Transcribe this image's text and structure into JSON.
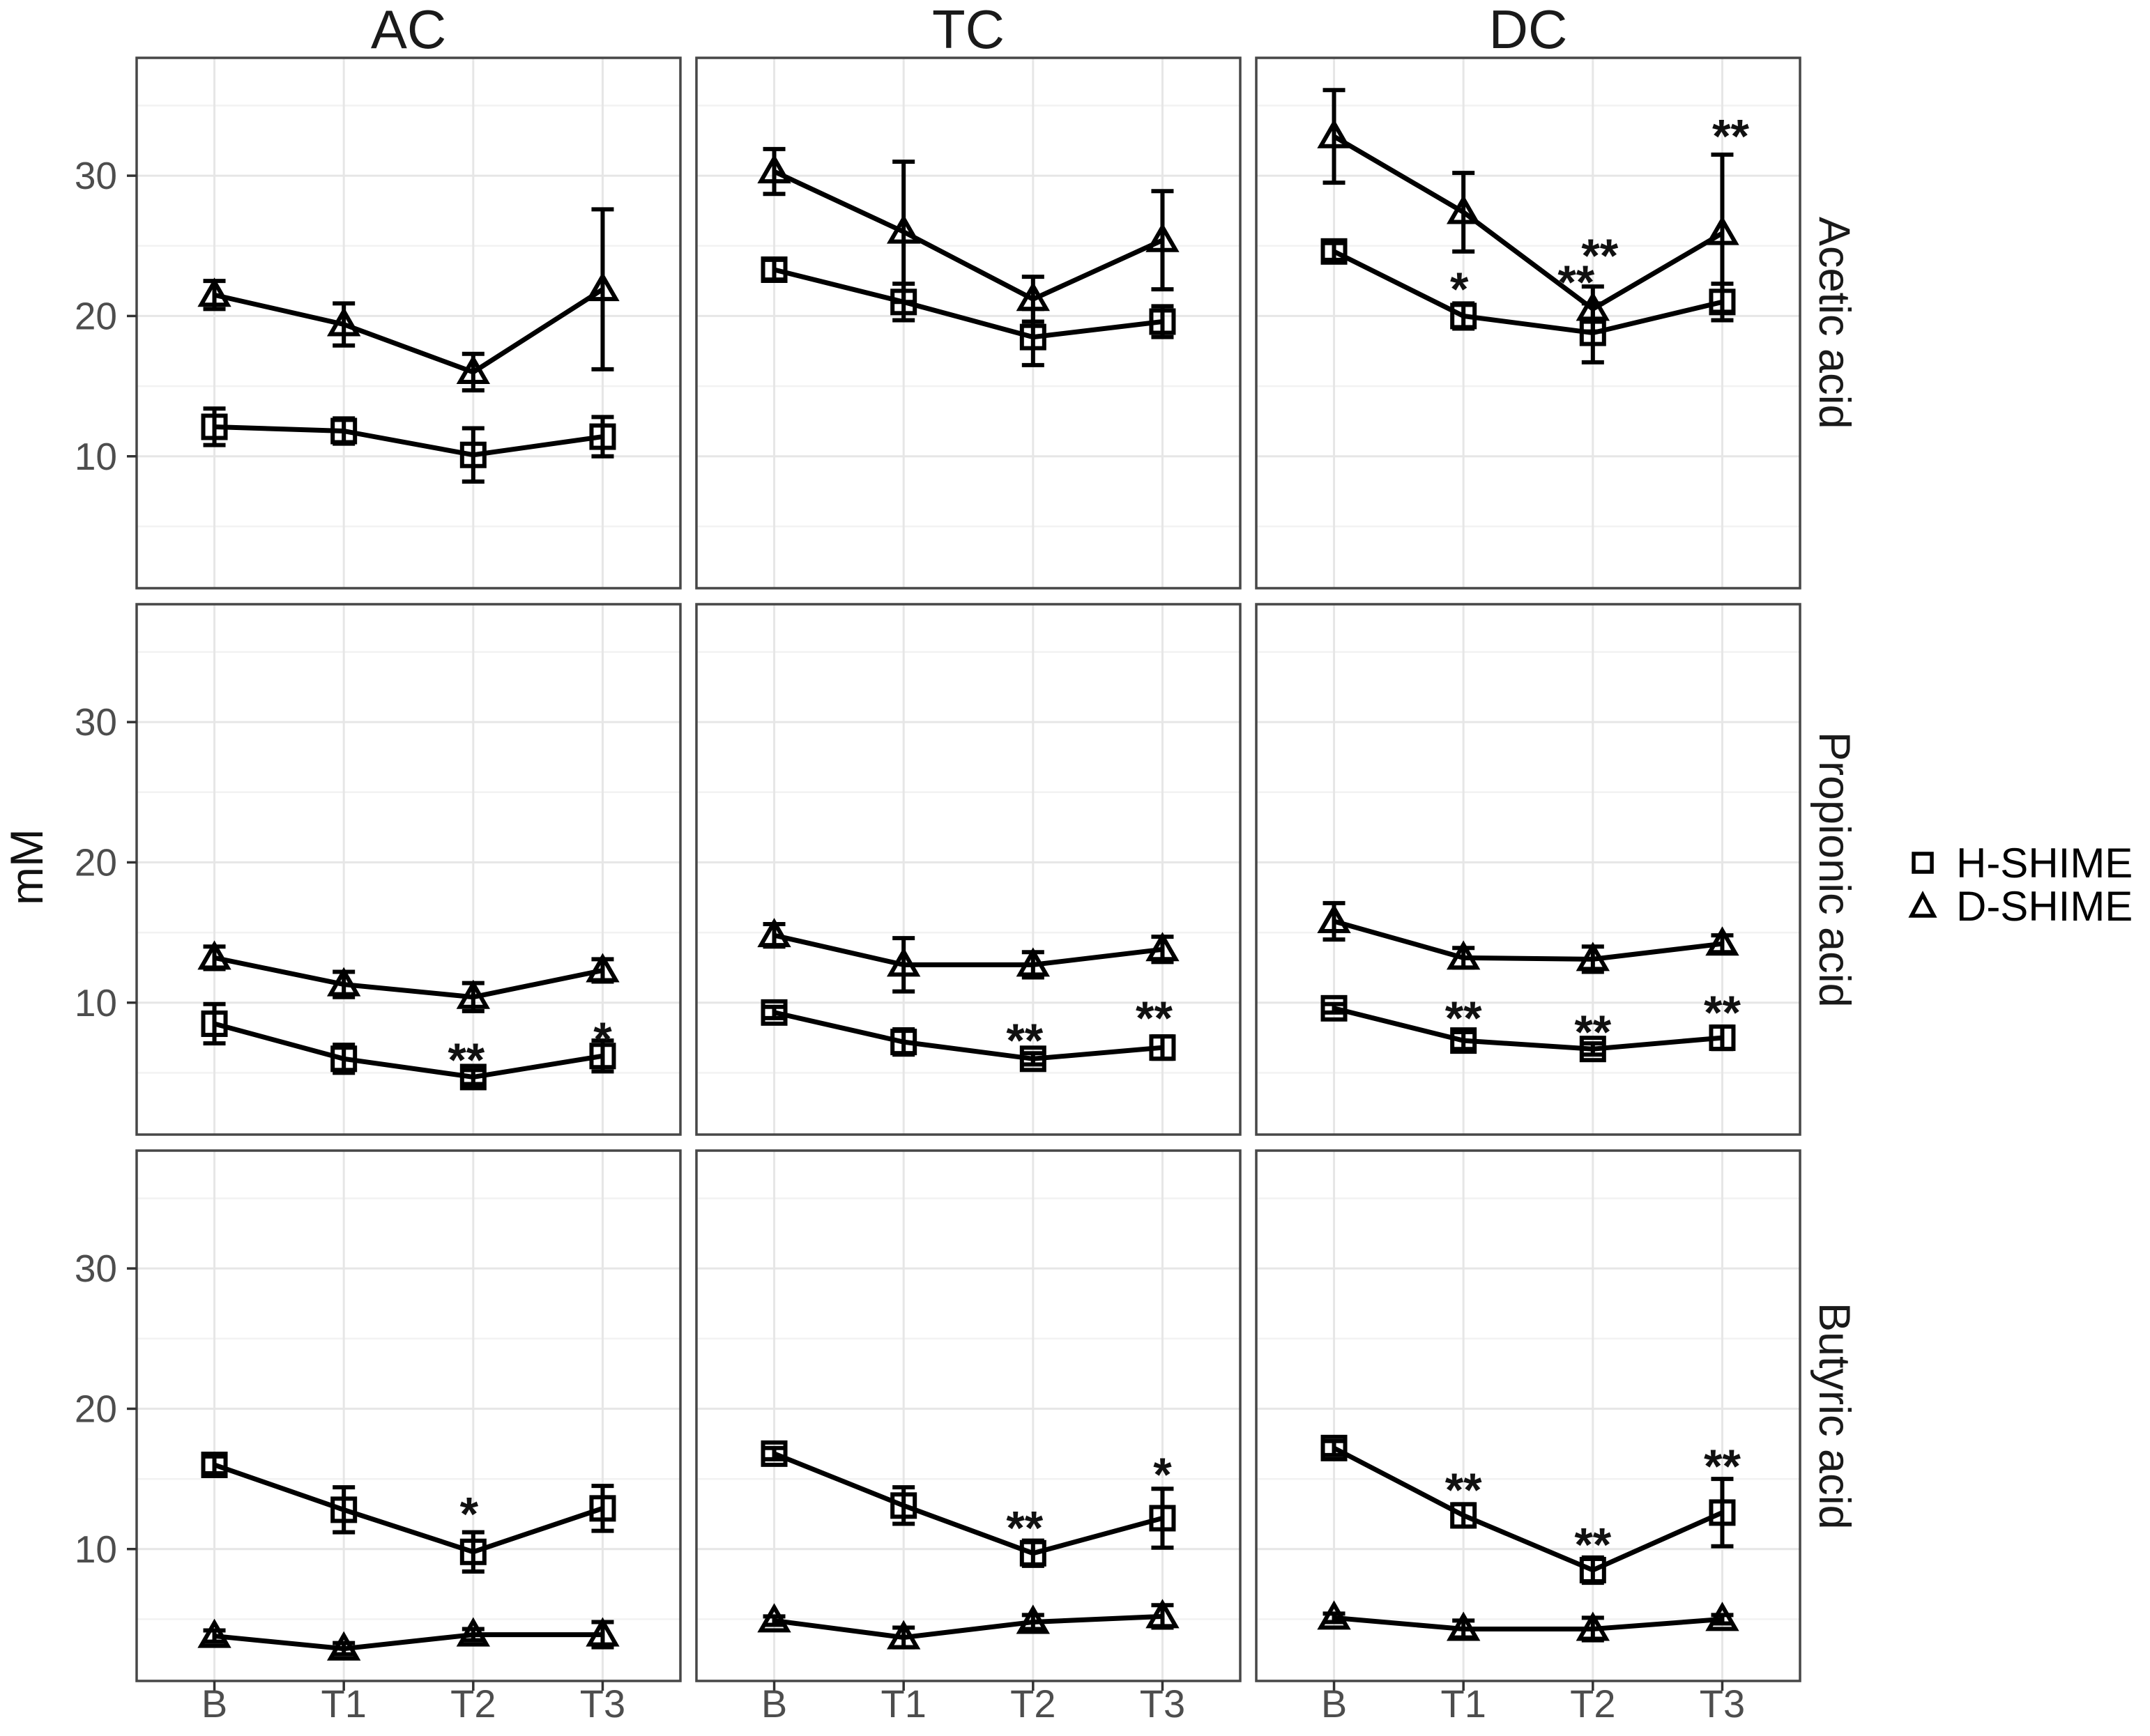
{
  "chart_data": {
    "type": "line",
    "title": "",
    "ylabel": "mM",
    "x_categories": [
      "B",
      "T1",
      "T2",
      "T3"
    ],
    "y_ticks": [
      "10",
      "20",
      "30"
    ],
    "y_tick_values": [
      10,
      20,
      30
    ],
    "y_minor_values": [
      5,
      15,
      25,
      35
    ],
    "ylim": [
      0.6,
      38.4
    ],
    "grid": "on",
    "legend_position": "right",
    "col_facets": [
      "AC",
      "TC",
      "DC"
    ],
    "row_facets": [
      "Acetic acid",
      "Propionic acid",
      "Butyric acid"
    ],
    "legend": [
      {
        "label": "H-SHIME",
        "marker": "square-icon"
      },
      {
        "label": "D-SHIME",
        "marker": "triangle-icon"
      }
    ],
    "colors": {
      "line": "#000000",
      "tick_text": "#4d4d4d",
      "grid_major": "#e6e6e6",
      "grid_minor": "#f2f2f2",
      "border": "#474747",
      "tick_mark": "#333333"
    },
    "panels": [
      {
        "row": 0,
        "col": 0,
        "series": [
          {
            "name": "H-SHIME",
            "marker": "square",
            "values": [
              12.1,
              11.8,
              10.1,
              11.4
            ],
            "errors": [
              1.3,
              0.9,
              1.9,
              1.4
            ]
          },
          {
            "name": "D-SHIME",
            "marker": "triangle",
            "values": [
              21.5,
              19.4,
              16.0,
              21.9
            ],
            "errors": [
              1.0,
              1.5,
              1.3,
              5.7
            ]
          }
        ],
        "annotations": []
      },
      {
        "row": 0,
        "col": 1,
        "series": [
          {
            "name": "H-SHIME",
            "marker": "square",
            "values": [
              23.3,
              21.0,
              18.5,
              19.6
            ],
            "errors": [
              0.7,
              1.3,
              2.0,
              1.1
            ]
          },
          {
            "name": "D-SHIME",
            "marker": "triangle",
            "values": [
              30.3,
              26.0,
              21.2,
              25.4
            ],
            "errors": [
              1.6,
              5.0,
              1.6,
              3.5
            ]
          }
        ],
        "annotations": []
      },
      {
        "row": 0,
        "col": 2,
        "series": [
          {
            "name": "H-SHIME",
            "marker": "square",
            "values": [
              24.6,
              20.0,
              18.8,
              21.0
            ],
            "errors": [
              0.6,
              0.9,
              2.1,
              1.3
            ]
          },
          {
            "name": "D-SHIME",
            "marker": "triangle",
            "values": [
              32.8,
              27.4,
              20.5,
              25.9
            ],
            "errors": [
              3.3,
              2.8,
              1.6,
              5.6
            ]
          }
        ],
        "annotations": [
          {
            "cat": 1,
            "text": "*",
            "y": 22.4,
            "dx": -6
          },
          {
            "cat": 2,
            "text": "**",
            "y": 22.9,
            "dx": -24
          },
          {
            "cat": 2,
            "text": "**",
            "y": 24.8,
            "dx": 10
          },
          {
            "cat": 3,
            "text": "**",
            "y": 33.3,
            "dx": 12
          }
        ]
      },
      {
        "row": 1,
        "col": 0,
        "series": [
          {
            "name": "H-SHIME",
            "marker": "square",
            "values": [
              8.5,
              6.0,
              4.7,
              6.2
            ],
            "errors": [
              1.4,
              1.0,
              0.5,
              1.1
            ]
          },
          {
            "name": "D-SHIME",
            "marker": "triangle",
            "values": [
              13.2,
              11.3,
              10.4,
              12.3
            ],
            "errors": [
              0.8,
              0.9,
              1.0,
              0.8
            ]
          }
        ],
        "annotations": [
          {
            "cat": 2,
            "text": "**",
            "y": 6.4,
            "dx": -10
          },
          {
            "cat": 3,
            "text": "*",
            "y": 7.9,
            "dx": 0
          }
        ]
      },
      {
        "row": 1,
        "col": 1,
        "series": [
          {
            "name": "H-SHIME",
            "marker": "square",
            "values": [
              9.3,
              7.2,
              6.0,
              6.8
            ],
            "errors": [
              0.4,
              0.9,
              0.4,
              0.8
            ]
          },
          {
            "name": "D-SHIME",
            "marker": "triangle",
            "values": [
              14.8,
              12.7,
              12.7,
              13.8
            ],
            "errors": [
              0.8,
              1.9,
              0.9,
              0.9
            ]
          }
        ],
        "annotations": [
          {
            "cat": 2,
            "text": "**",
            "y": 7.8,
            "dx": -12
          },
          {
            "cat": 3,
            "text": "**",
            "y": 9.4,
            "dx": -12
          }
        ]
      },
      {
        "row": 1,
        "col": 2,
        "series": [
          {
            "name": "H-SHIME",
            "marker": "square",
            "values": [
              9.6,
              7.3,
              6.7,
              7.5
            ],
            "errors": [
              0.3,
              0.6,
              0.4,
              0.8
            ]
          },
          {
            "name": "D-SHIME",
            "marker": "triangle",
            "values": [
              15.8,
              13.2,
              13.1,
              14.2
            ],
            "errors": [
              1.3,
              0.7,
              0.9,
              0.6
            ]
          }
        ],
        "annotations": [
          {
            "cat": 1,
            "text": "**",
            "y": 9.4,
            "dx": 0
          },
          {
            "cat": 2,
            "text": "**",
            "y": 8.4,
            "dx": 0
          },
          {
            "cat": 3,
            "text": "**",
            "y": 9.8,
            "dx": 0
          }
        ]
      },
      {
        "row": 2,
        "col": 0,
        "series": [
          {
            "name": "H-SHIME",
            "marker": "square",
            "values": [
              16.0,
              12.8,
              9.8,
              12.9
            ],
            "errors": [
              0.6,
              1.6,
              1.4,
              1.6
            ]
          },
          {
            "name": "D-SHIME",
            "marker": "triangle",
            "values": [
              3.8,
              2.9,
              3.9,
              3.9
            ],
            "errors": [
              0.4,
              0.4,
              0.4,
              0.9
            ]
          }
        ],
        "annotations": [
          {
            "cat": 2,
            "text": "*",
            "y": 13.0,
            "dx": -6
          }
        ]
      },
      {
        "row": 2,
        "col": 1,
        "series": [
          {
            "name": "H-SHIME",
            "marker": "square",
            "values": [
              16.8,
              13.1,
              9.7,
              12.2
            ],
            "errors": [
              0.4,
              1.3,
              0.9,
              2.1
            ]
          },
          {
            "name": "D-SHIME",
            "marker": "triangle",
            "values": [
              4.9,
              3.7,
              4.8,
              5.2
            ],
            "errors": [
              0.3,
              0.7,
              0.5,
              0.8
            ]
          }
        ],
        "annotations": [
          {
            "cat": 2,
            "text": "**",
            "y": 12.0,
            "dx": -12
          },
          {
            "cat": 3,
            "text": "*",
            "y": 15.8,
            "dx": 0
          }
        ]
      },
      {
        "row": 2,
        "col": 2,
        "series": [
          {
            "name": "H-SHIME",
            "marker": "square",
            "values": [
              17.2,
              12.4,
              8.5,
              12.6
            ],
            "errors": [
              0.5,
              0.8,
              0.9,
              2.4
            ]
          },
          {
            "name": "D-SHIME",
            "marker": "triangle",
            "values": [
              5.1,
              4.3,
              4.3,
              5.0
            ],
            "errors": [
              0.3,
              0.6,
              0.8,
              0.3
            ]
          }
        ],
        "annotations": [
          {
            "cat": 1,
            "text": "**",
            "y": 14.7,
            "dx": 0
          },
          {
            "cat": 2,
            "text": "**",
            "y": 10.8,
            "dx": 0
          },
          {
            "cat": 3,
            "text": "**",
            "y": 16.4,
            "dx": 0
          }
        ]
      }
    ]
  }
}
